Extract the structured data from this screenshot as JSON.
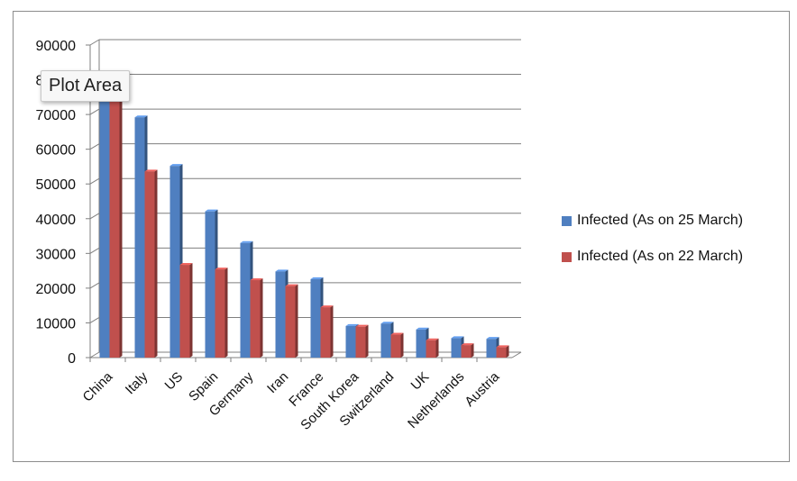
{
  "tooltip": "Plot Area",
  "chart_data": {
    "type": "bar",
    "categories": [
      "China",
      "Italy",
      "US",
      "Spain",
      "Germany",
      "Iran",
      "France",
      "South Korea",
      "Switzerland",
      "UK",
      "Netherlands",
      "Austria"
    ],
    "series": [
      {
        "name": "Infected (As on 25 March)",
        "color": "#4f7fc0",
        "values": [
          81500,
          69200,
          55200,
          42100,
          33000,
          24800,
          22600,
          9100,
          9800,
          8100,
          5600,
          5400
        ]
      },
      {
        "name": "Infected (As on 22 March)",
        "color": "#c0504d",
        "values": [
          81300,
          53600,
          26700,
          25400,
          22300,
          20600,
          14500,
          8900,
          6600,
          5000,
          3600,
          3000
        ]
      }
    ],
    "yticks": [
      0,
      10000,
      20000,
      30000,
      40000,
      50000,
      60000,
      70000,
      80000,
      90000
    ],
    "ylim": [
      0,
      90000
    ],
    "grid": true,
    "legend": "right"
  }
}
